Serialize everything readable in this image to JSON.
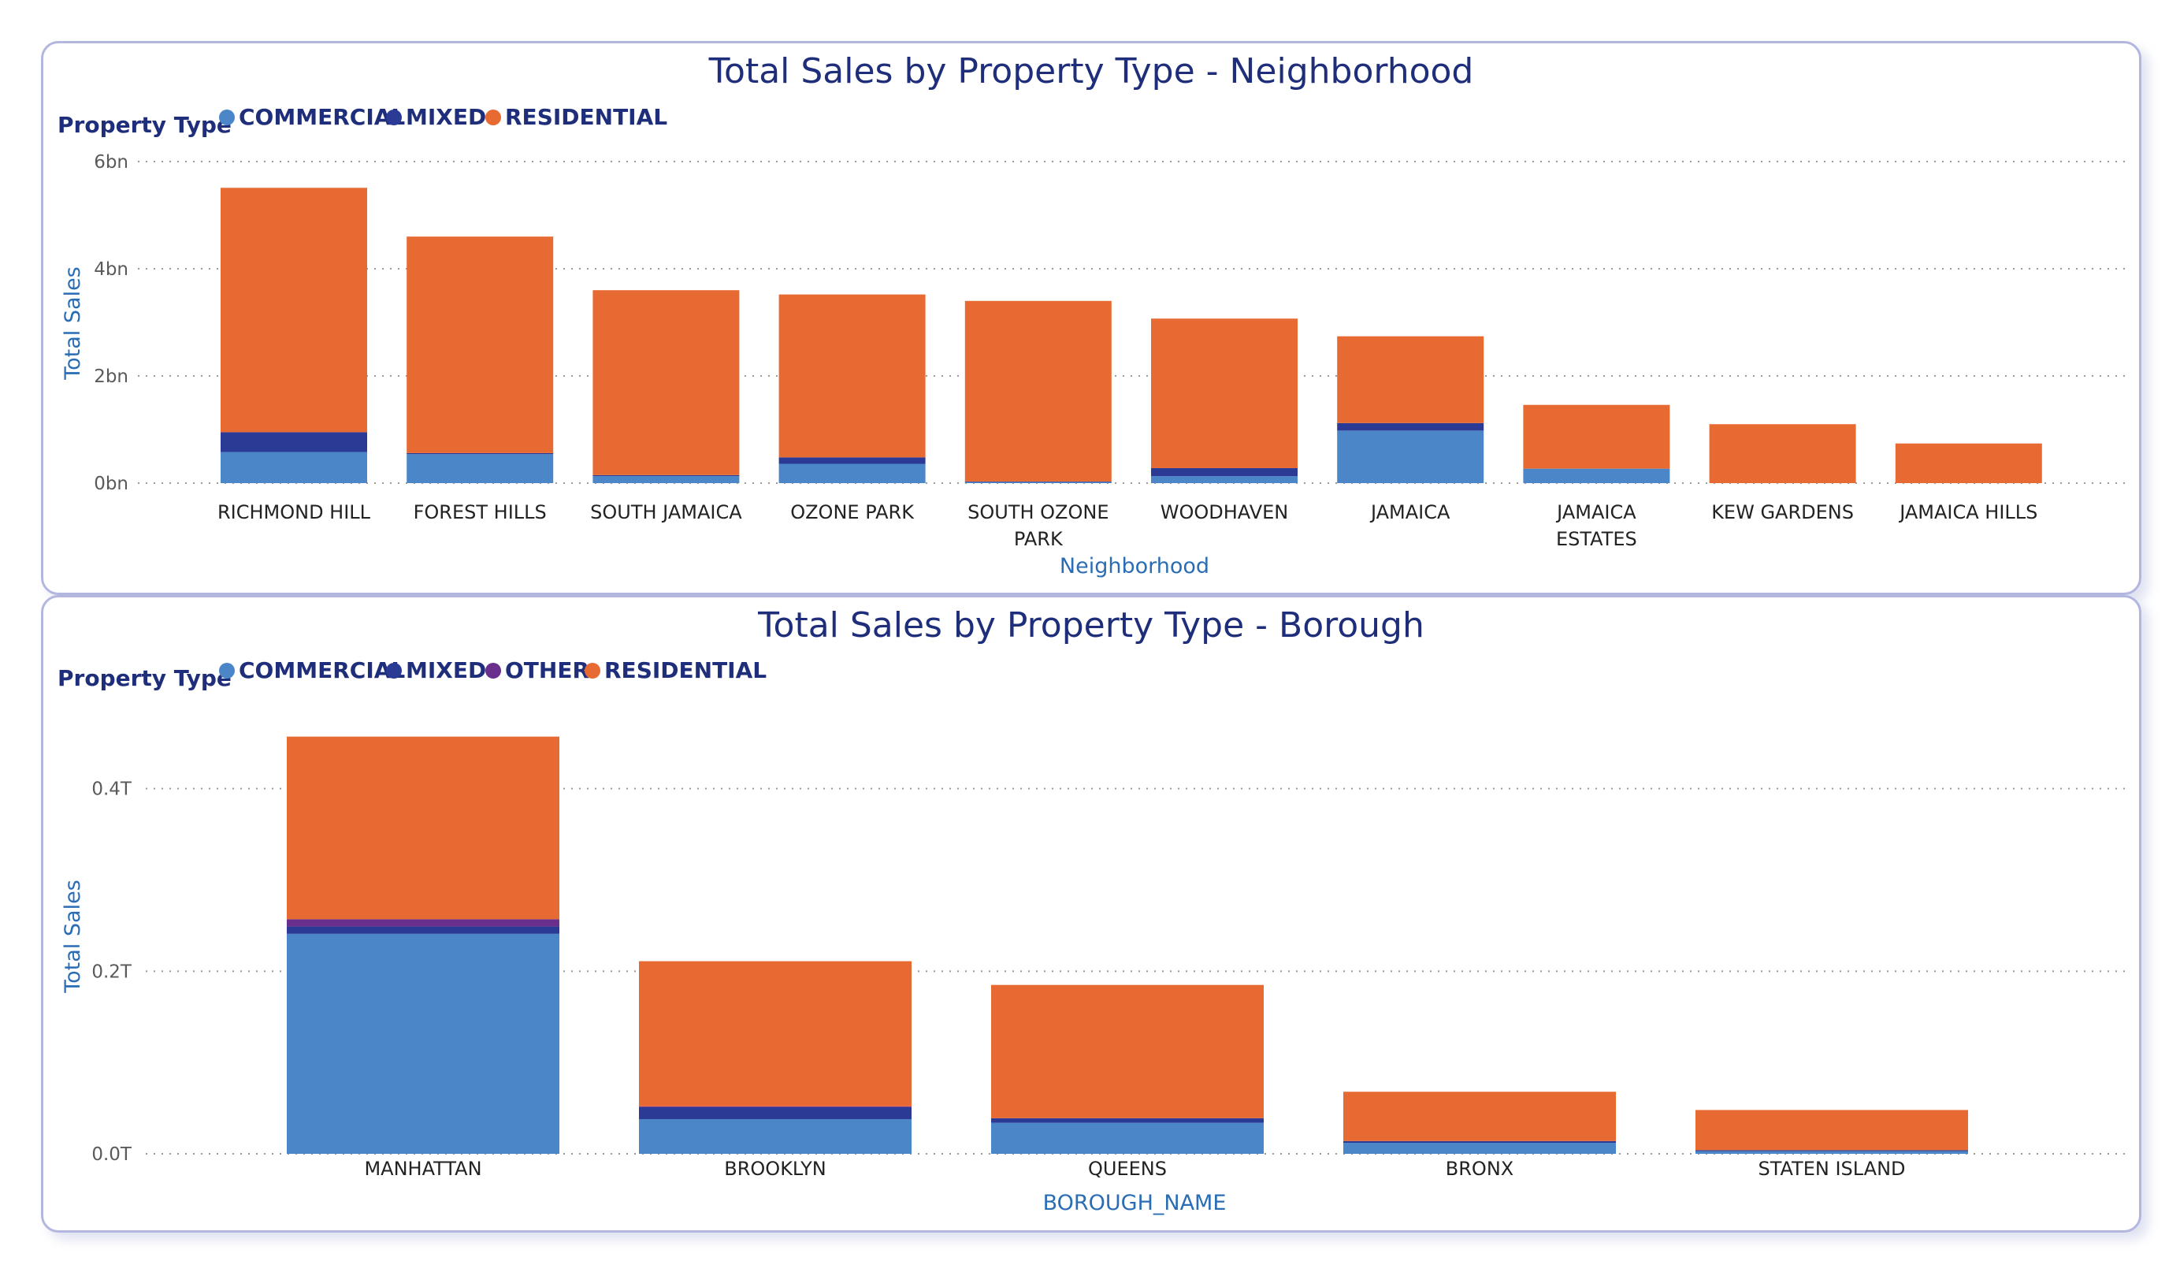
{
  "colors": {
    "COMMERCIAL": "#4a86c8",
    "MIXED": "#2b3a94",
    "OTHER": "#6a2f8c",
    "RESIDENTIAL": "#e86a33"
  },
  "chart_data": [
    {
      "type": "bar",
      "stacked": true,
      "title": "Total Sales by Property Type - Neighborhood",
      "legend_title": "Property Type",
      "legend_position": "top-left",
      "xlabel": "Neighborhood",
      "ylabel": "Total Sales",
      "ylim": [
        0,
        6
      ],
      "yticks": [
        0,
        2,
        4,
        6
      ],
      "ytick_labels": [
        "0bn",
        "2bn",
        "4bn",
        "6bn"
      ],
      "grid": true,
      "categories": [
        "RICHMOND HILL",
        "FOREST HILLS",
        "SOUTH JAMAICA",
        "OZONE PARK",
        "SOUTH OZONE PARK",
        "WOODHAVEN",
        "JAMAICA",
        "JAMAICA ESTATES",
        "KEW GARDENS",
        "JAMAICA HILLS"
      ],
      "series": [
        {
          "name": "COMMERCIAL",
          "values": [
            0.58,
            0.54,
            0.13,
            0.36,
            0.02,
            0.13,
            0.98,
            0.27,
            0.0,
            0.0
          ]
        },
        {
          "name": "MIXED",
          "values": [
            0.37,
            0.02,
            0.02,
            0.12,
            0.01,
            0.15,
            0.14,
            0.0,
            0.0,
            0.0
          ]
        },
        {
          "name": "RESIDENTIAL",
          "values": [
            4.56,
            4.04,
            3.45,
            3.04,
            3.37,
            2.79,
            1.62,
            1.19,
            1.1,
            0.74
          ]
        }
      ]
    },
    {
      "type": "bar",
      "stacked": true,
      "title": "Total Sales by Property Type - Borough",
      "legend_title": "Property Type",
      "legend_position": "top-left",
      "xlabel": "BOROUGH_NAME",
      "ylabel": "Total Sales",
      "ylim": [
        0,
        0.48
      ],
      "yticks": [
        0,
        0.2,
        0.4
      ],
      "ytick_labels": [
        "0.0T",
        "0.2T",
        "0.4T"
      ],
      "grid": true,
      "categories": [
        "MANHATTAN",
        "BROOKLYN",
        "QUEENS",
        "BRONX",
        "STATEN ISLAND"
      ],
      "series": [
        {
          "name": "COMMERCIAL",
          "values": [
            0.241,
            0.038,
            0.034,
            0.012,
            0.003
          ]
        },
        {
          "name": "MIXED",
          "values": [
            0.008,
            0.013,
            0.005,
            0.002,
            0.001
          ]
        },
        {
          "name": "OTHER",
          "values": [
            0.008,
            0.001,
            0.0,
            0.0,
            0.0
          ]
        },
        {
          "name": "RESIDENTIAL",
          "values": [
            0.2,
            0.159,
            0.146,
            0.054,
            0.044
          ]
        }
      ]
    }
  ]
}
